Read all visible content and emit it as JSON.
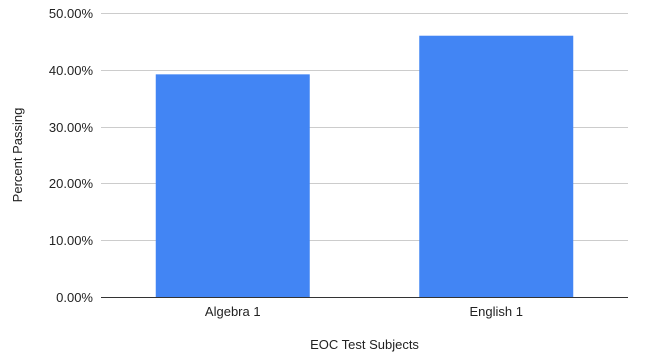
{
  "chart_data": {
    "type": "bar",
    "title": "",
    "xlabel": "EOC Test Subjects",
    "ylabel": "Percent Passing",
    "categories": [
      "Algebra 1",
      "English 1"
    ],
    "values": [
      39.2,
      46.0
    ],
    "ylim": [
      0,
      50
    ],
    "yticks": [
      0,
      10,
      20,
      30,
      40,
      50
    ],
    "ytick_labels": [
      "0.00%",
      "10.00%",
      "20.00%",
      "30.00%",
      "40.00%",
      "50.00%"
    ],
    "bar_color": "#4285f4",
    "grid": true,
    "legend": "none"
  }
}
